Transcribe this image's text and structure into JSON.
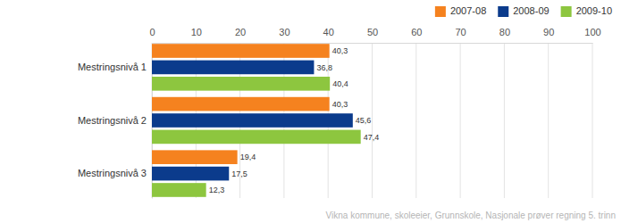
{
  "chart_data": {
    "type": "bar",
    "orientation": "horizontal",
    "categories": [
      "Mestringsnivå 1",
      "Mestringsnivå 2",
      "Mestringsnivå 3"
    ],
    "series": [
      {
        "name": "2007-08",
        "color": "#f5821f",
        "values": [
          40.3,
          40.3,
          19.4
        ],
        "value_labels": [
          "40,3",
          "40,3",
          "19,4"
        ]
      },
      {
        "name": "2008-09",
        "color": "#0b3b8c",
        "values": [
          36.8,
          45.6,
          17.5
        ],
        "value_labels": [
          "36,8",
          "45,6",
          "17,5"
        ]
      },
      {
        "name": "2009-10",
        "color": "#8dc63f",
        "values": [
          40.4,
          47.4,
          12.3
        ],
        "value_labels": [
          "40,4",
          "47,4",
          "12,3"
        ]
      }
    ],
    "xlim": [
      0,
      100
    ],
    "xticks": [
      0,
      10,
      20,
      30,
      40,
      50,
      60,
      70,
      80,
      90,
      100
    ],
    "grid": true,
    "legend": "top-right",
    "data_labels": true,
    "annotations": [
      "Vikna kommune, skoleeier, Grunnskole, Nasjonale prøver regning 5. trinn"
    ]
  }
}
